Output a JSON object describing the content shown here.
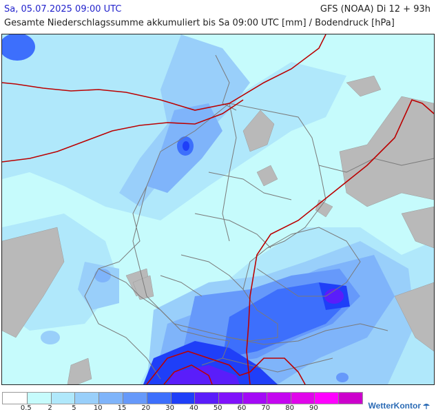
{
  "header": {
    "date": "Sa, 05.07.2025 09:00 UTC",
    "model": "GFS (NOAA) Di 12 + 93h",
    "title": "Gesamte Niederschlagssumme akkumuliert bis Sa 09:00 UTC [mm] / Bodendruck [hPa]"
  },
  "legend": {
    "colors": [
      "#ffffff",
      "#c6fbfc",
      "#b0e8fb",
      "#99cffa",
      "#7fb4fa",
      "#6699fa",
      "#3d6ffc",
      "#1f3ff8",
      "#5a1dfa",
      "#8012fb",
      "#a30af6",
      "#c407f0",
      "#e006ea",
      "#ff00ff",
      "#cc00cc"
    ],
    "labels": [
      "0.5",
      "2",
      "5",
      "10",
      "15",
      "20",
      "30",
      "40",
      "50",
      "60",
      "70",
      "80",
      "90"
    ]
  },
  "map": {
    "isobar_color": "#bb0000",
    "terrain_color": "#b9b9b9",
    "border_color": "#7a7a7a"
  },
  "logo": {
    "text": "WetterKontor",
    "icon": "umbrella-icon"
  }
}
